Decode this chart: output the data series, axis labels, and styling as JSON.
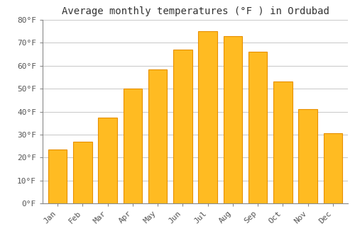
{
  "title": "Average monthly temperatures (°F ) in Ordubad",
  "categories": [
    "Jan",
    "Feb",
    "Mar",
    "Apr",
    "May",
    "Jun",
    "Jul",
    "Aug",
    "Sep",
    "Oct",
    "Nov",
    "Dec"
  ],
  "values": [
    23.5,
    27,
    37.5,
    50,
    58.5,
    67,
    75,
    73,
    66,
    53,
    41,
    30.5
  ],
  "bar_color": "#FFBB22",
  "bar_edge_color": "#E89000",
  "background_color": "#ffffff",
  "plot_bg_color": "#ffffff",
  "ylim": [
    0,
    80
  ],
  "yticks": [
    0,
    10,
    20,
    30,
    40,
    50,
    60,
    70,
    80
  ],
  "ytick_labels": [
    "0°F",
    "10°F",
    "20°F",
    "30°F",
    "40°F",
    "50°F",
    "60°F",
    "70°F",
    "80°F"
  ],
  "title_fontsize": 10,
  "tick_fontsize": 8,
  "grid_color": "#cccccc",
  "font_family": "monospace",
  "figsize": [
    5.0,
    3.5
  ],
  "dpi": 100
}
